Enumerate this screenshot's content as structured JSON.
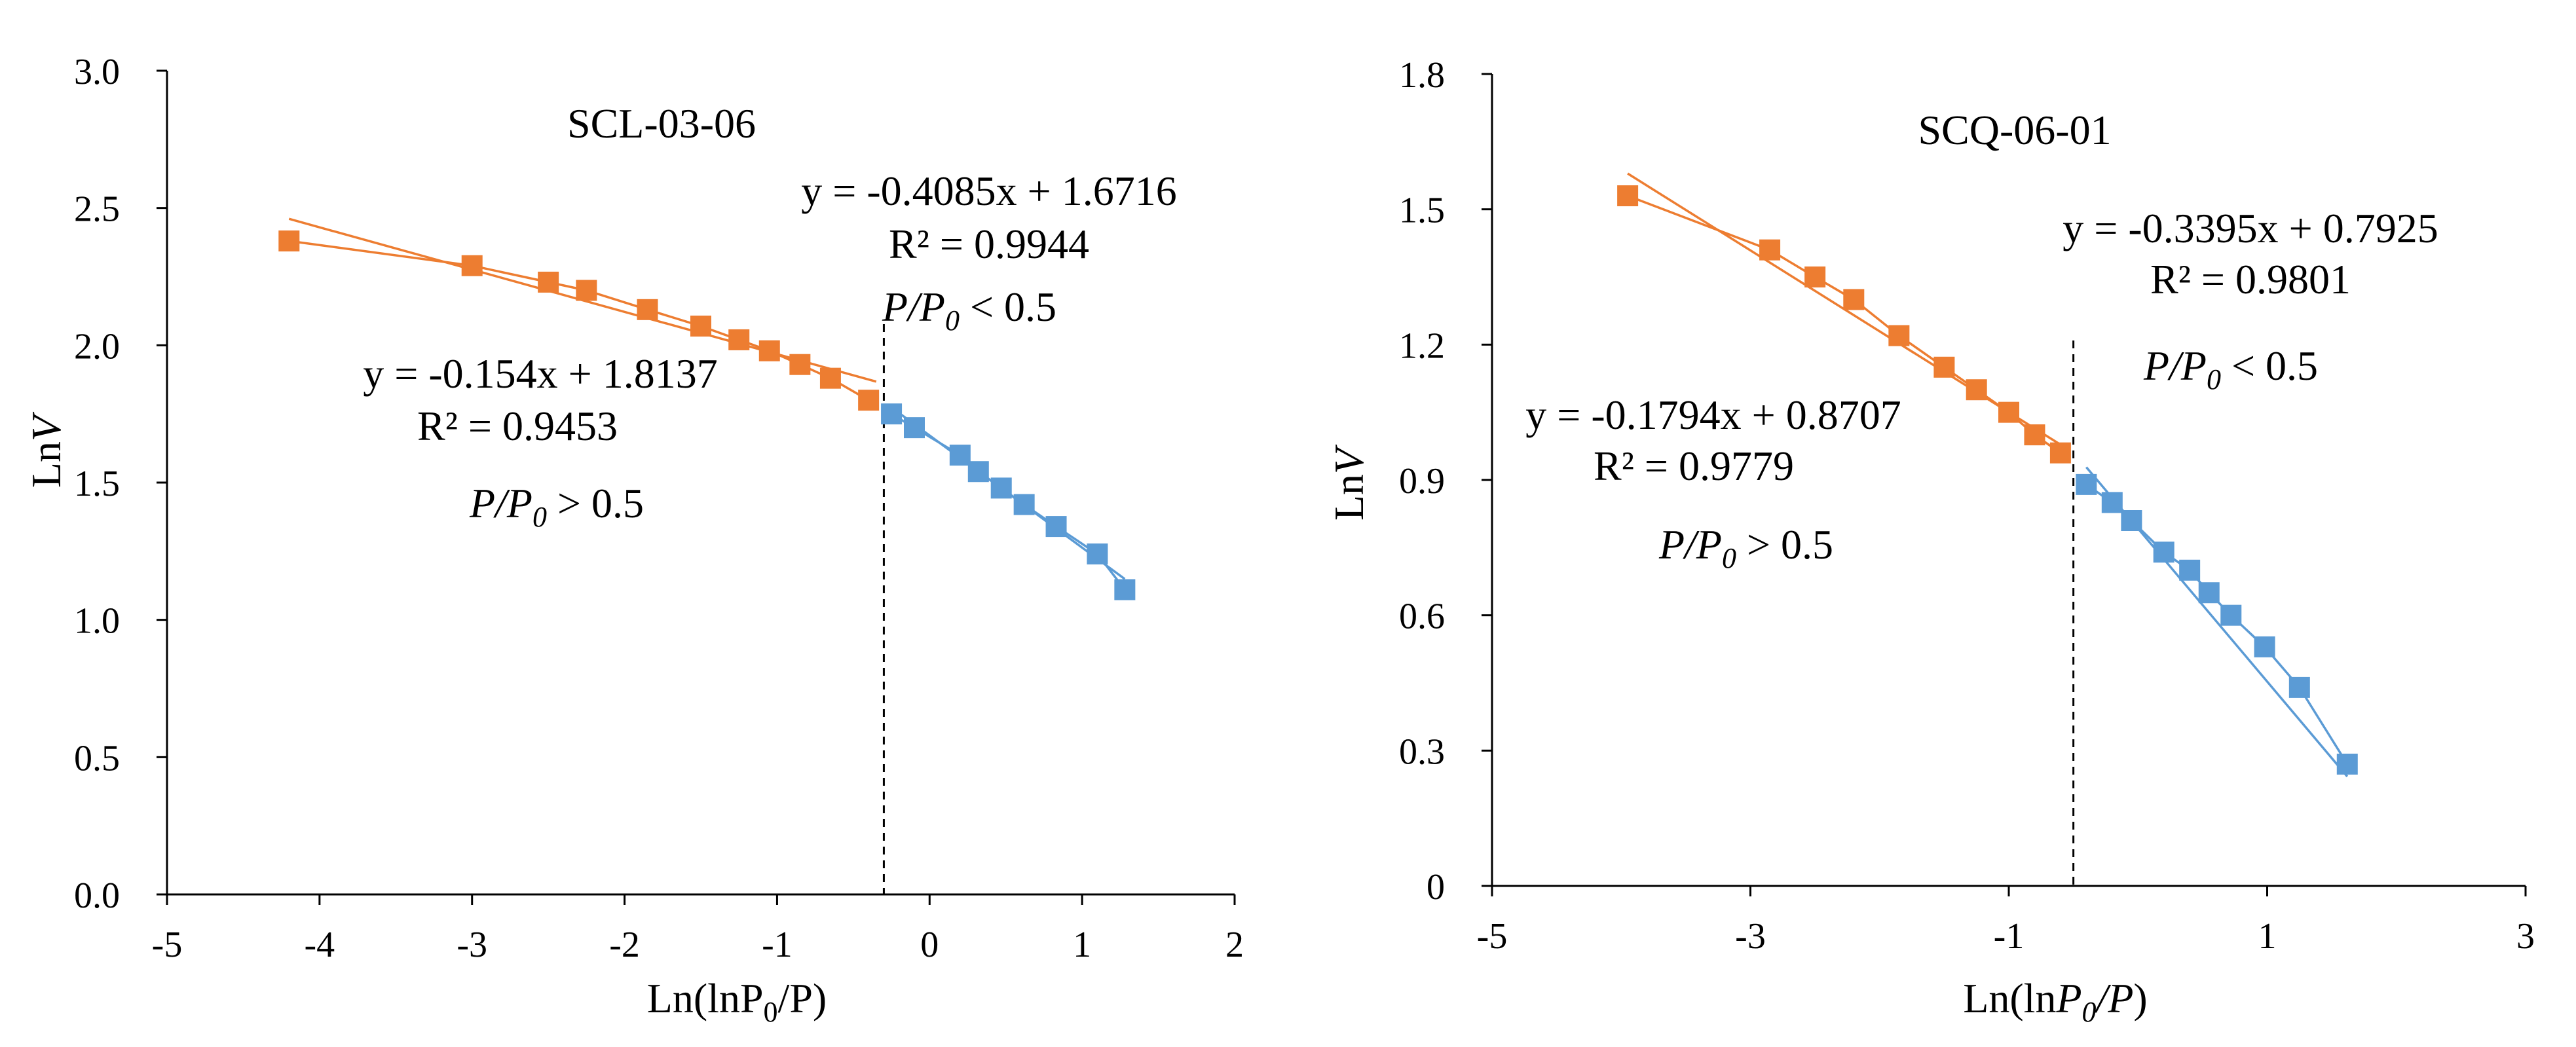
{
  "chart_data": [
    {
      "type": "scatter",
      "title": "SCL-03-06",
      "xlabel": "Ln(lnP0/P)",
      "xlabel_parts": {
        "pre": "Ln(lnP",
        "sub": "0",
        "post": "/P)"
      },
      "ylabel": "LnV",
      "ylabel_parts": {
        "pre": "Ln",
        "italic": "V"
      },
      "xlim": [
        -5,
        2
      ],
      "ylim": [
        0,
        3
      ],
      "xticks": [
        -5,
        -4,
        -3,
        -2,
        -1,
        0,
        1,
        2
      ],
      "yticks": [
        0,
        0.5,
        1,
        1.5,
        2,
        2.5,
        3
      ],
      "xtick_labels": [
        "-5",
        "-4",
        "-3",
        "-2",
        "-1",
        "0",
        "1",
        "2"
      ],
      "ytick_labels": [
        "0.0",
        "0.5",
        "1.0",
        "1.5",
        "2.0",
        "2.5",
        "3.0"
      ],
      "divider_x": -0.3,
      "series": [
        {
          "name": "P/P0 > 0.5",
          "color": "#ED7D31",
          "x": [
            -4.2,
            -3.0,
            -2.5,
            -2.25,
            -1.85,
            -1.5,
            -1.25,
            -1.05,
            -0.85,
            -0.65,
            -0.4
          ],
          "y": [
            2.38,
            2.29,
            2.23,
            2.2,
            2.13,
            2.07,
            2.02,
            1.98,
            1.93,
            1.88,
            1.8
          ],
          "fit": {
            "slope": -0.154,
            "intercept": 1.8137,
            "x_range": [
              -4.2,
              -0.35
            ]
          },
          "equation": "y = -0.154x + 1.8137",
          "r2": "R² = 0.9453",
          "condition": {
            "pre": "P/P",
            "sub": "0",
            "post": " > 0.5"
          }
        },
        {
          "name": "P/P0 < 0.5",
          "color": "#5B9BD5",
          "x": [
            -0.25,
            -0.1,
            0.2,
            0.32,
            0.47,
            0.62,
            0.83,
            1.1,
            1.28
          ],
          "y": [
            1.75,
            1.7,
            1.6,
            1.54,
            1.48,
            1.42,
            1.34,
            1.24,
            1.11
          ],
          "fit": {
            "slope": -0.4085,
            "intercept": 1.6716,
            "x_range": [
              -0.25,
              1.28
            ]
          },
          "equation": "y = -0.4085x + 1.6716",
          "r2": "R² = 0.9944",
          "condition": {
            "pre": "P/P",
            "sub": "0",
            "post": " < 0.5"
          }
        }
      ]
    },
    {
      "type": "scatter",
      "title": "SCQ-06-01",
      "xlabel": "Ln(lnP0/P)",
      "xlabel_parts": {
        "pre": "Ln(ln",
        "italic": "P",
        "sub": "0",
        "post_italic": "/P",
        "post": ")"
      },
      "ylabel": "LnV",
      "ylabel_parts": {
        "pre": "Ln",
        "italic": "V"
      },
      "xlim": [
        -5,
        3
      ],
      "ylim": [
        0,
        1.8
      ],
      "xticks": [
        -5,
        -3,
        -1,
        1,
        3
      ],
      "yticks": [
        0,
        0.3,
        0.6,
        0.9,
        1.2,
        1.5,
        1.8
      ],
      "xtick_labels": [
        "-5",
        "-3",
        "-1",
        "1",
        "3"
      ],
      "ytick_labels": [
        "0",
        "0.3",
        "0.6",
        "0.9",
        "1.2",
        "1.5",
        "1.8"
      ],
      "divider_x": -0.5,
      "series": [
        {
          "name": "P/P0 > 0.5",
          "color": "#ED7D31",
          "x": [
            -3.95,
            -2.85,
            -2.5,
            -2.2,
            -1.85,
            -1.5,
            -1.25,
            -1.0,
            -0.8,
            -0.6
          ],
          "y": [
            1.53,
            1.41,
            1.35,
            1.3,
            1.22,
            1.15,
            1.1,
            1.05,
            1.0,
            0.96
          ],
          "fit": {
            "slope": -0.1794,
            "intercept": 0.8707,
            "x_range": [
              -3.95,
              -0.6
            ]
          },
          "equation": "y = -0.1794x + 0.8707",
          "r2": "R² = 0.9779",
          "condition": {
            "pre": "P/P",
            "sub": "0",
            "post": " > 0.5"
          }
        },
        {
          "name": "P/P0 < 0.5",
          "color": "#5B9BD5",
          "x": [
            -0.4,
            -0.2,
            -0.05,
            0.2,
            0.4,
            0.55,
            0.72,
            0.98,
            1.25,
            1.62
          ],
          "y": [
            0.89,
            0.85,
            0.81,
            0.74,
            0.7,
            0.65,
            0.6,
            0.53,
            0.44,
            0.27
          ],
          "fit": {
            "slope": -0.3395,
            "intercept": 0.7925,
            "x_range": [
              -0.4,
              1.62
            ]
          },
          "equation": "y = -0.3395x + 0.7925",
          "r2": "R² = 0.9801",
          "condition": {
            "pre": "P/P",
            "sub": "0",
            "post": " < 0.5"
          }
        }
      ]
    }
  ]
}
